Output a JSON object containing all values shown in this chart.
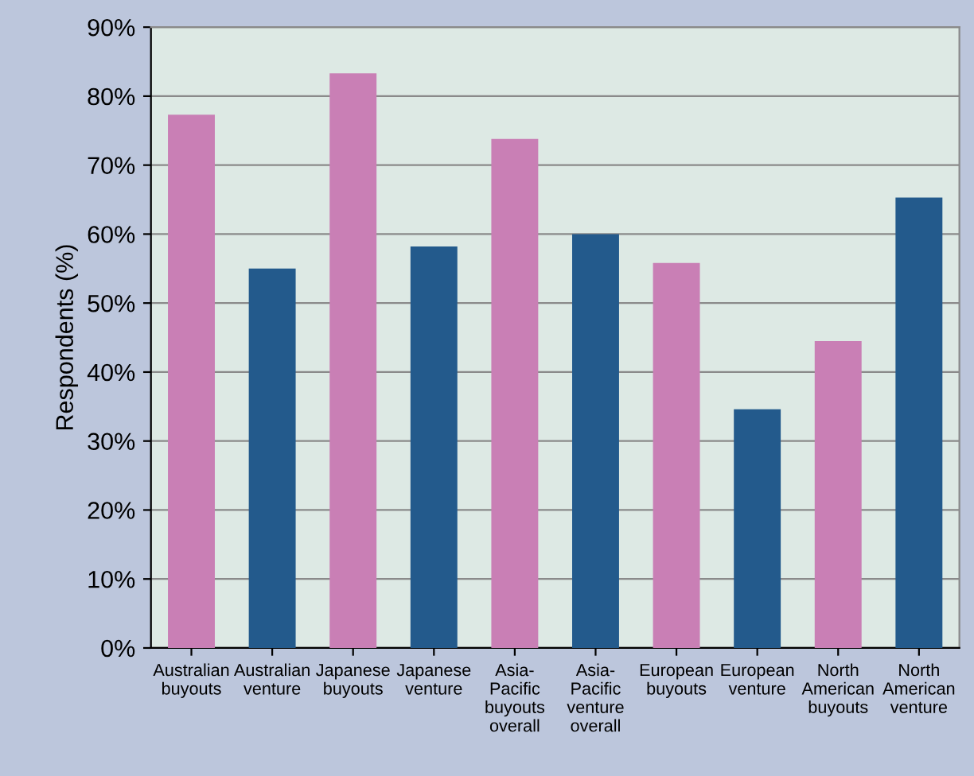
{
  "chart_data": {
    "type": "bar",
    "ylabel": "Respondents (%)",
    "categories": [
      "Australian\nbuyouts",
      "Australian\nventure",
      "Japanese\nbuyouts",
      "Japanese\nventure",
      "Asia-\nPacific\nbuyouts\noverall",
      "Asia-\nPacific\nventure\noverall",
      "European\nbuyouts",
      "European\nventure",
      "North\nAmerican\nbuyouts",
      "North\nAmerican\nventure"
    ],
    "values": [
      77.3,
      55,
      83.3,
      58.2,
      73.8,
      60,
      55.8,
      34.6,
      44.5,
      65.3
    ],
    "colors": [
      "#c97fb5",
      "#235a8c",
      "#c97fb5",
      "#235a8c",
      "#c97fb5",
      "#235a8c",
      "#c97fb5",
      "#235a8c",
      "#c97fb5",
      "#235a8c"
    ],
    "ylim": [
      0,
      90
    ],
    "yticks": [
      {
        "value": 0,
        "label": "0%"
      },
      {
        "value": 10,
        "label": "10%"
      },
      {
        "value": 20,
        "label": "20%"
      },
      {
        "value": 30,
        "label": "30%"
      },
      {
        "value": 40,
        "label": "40%"
      },
      {
        "value": 50,
        "label": "50%"
      },
      {
        "value": 60,
        "label": "60%"
      },
      {
        "value": 70,
        "label": "70%"
      },
      {
        "value": 80,
        "label": "80%"
      },
      {
        "value": 90,
        "label": "90%"
      }
    ],
    "grid": "y"
  }
}
